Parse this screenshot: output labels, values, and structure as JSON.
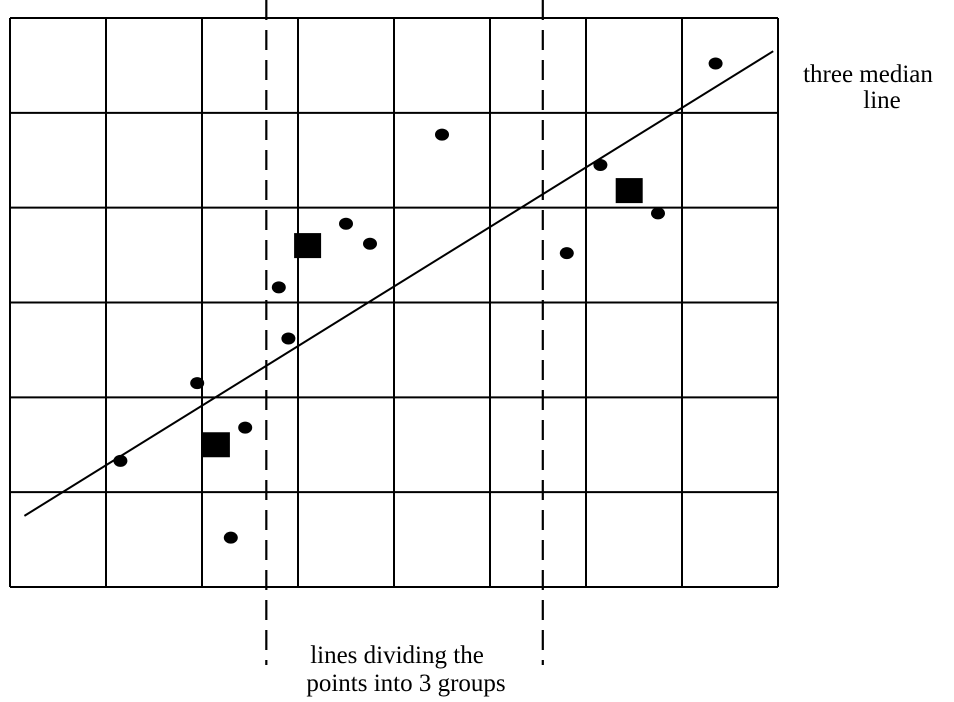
{
  "chart_data": {
    "type": "scatter",
    "title": "",
    "xlabel": "",
    "ylabel": "",
    "xlim": [
      0,
      8
    ],
    "ylim": [
      0,
      6
    ],
    "grid": true,
    "points": [
      {
        "x": 1.15,
        "y": 1.33
      },
      {
        "x": 1.95,
        "y": 2.15
      },
      {
        "x": 2.45,
        "y": 1.68
      },
      {
        "x": 2.3,
        "y": 0.52
      },
      {
        "x": 2.8,
        "y": 3.16
      },
      {
        "x": 2.9,
        "y": 2.62
      },
      {
        "x": 3.5,
        "y": 3.83
      },
      {
        "x": 3.75,
        "y": 3.62
      },
      {
        "x": 4.5,
        "y": 4.77
      },
      {
        "x": 5.8,
        "y": 3.52
      },
      {
        "x": 6.15,
        "y": 4.45
      },
      {
        "x": 6.75,
        "y": 3.94
      },
      {
        "x": 7.35,
        "y": 5.52
      }
    ],
    "medians": [
      {
        "x": 2.15,
        "y": 1.5
      },
      {
        "x": 3.1,
        "y": 3.6
      },
      {
        "x": 6.45,
        "y": 4.18
      }
    ],
    "median_line": [
      {
        "x": 0.15,
        "y": 0.75
      },
      {
        "x": 7.95,
        "y": 5.65
      }
    ],
    "group_dividers": [
      2.67,
      5.55
    ],
    "annotations": {
      "median_line_label": [
        "three median",
        "line"
      ],
      "divider_label": [
        "lines dividing the",
        "points into 3 groups"
      ]
    }
  }
}
